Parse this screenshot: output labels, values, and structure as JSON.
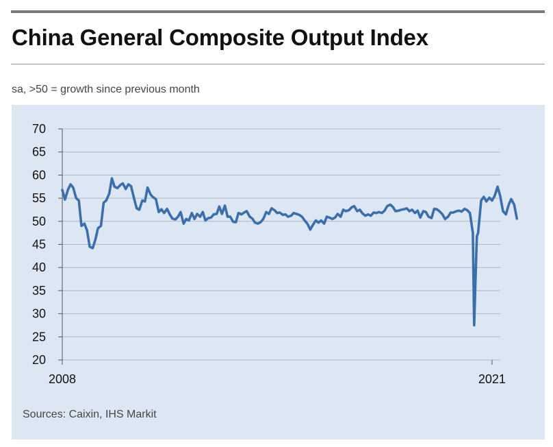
{
  "title": "China General Composite Output Index",
  "subtitle": "sa, >50 = growth since previous month",
  "source": "Sources: Caixin, IHS Markit",
  "colors": {
    "line": "#3a6fab",
    "panel": "#dde7f4",
    "grid": "#aeb6c2",
    "rule": "#7a7a7a"
  },
  "chart_data": {
    "type": "line",
    "title": "China General Composite Output Index",
    "subtitle": "sa, >50 = growth since previous month",
    "xlabel": "",
    "ylabel": "",
    "ylim": [
      20,
      70
    ],
    "yticks": [
      20,
      25,
      30,
      35,
      40,
      45,
      50,
      55,
      60,
      65,
      70
    ],
    "xlim": [
      2008.0,
      2021.25
    ],
    "xtick_labels": [
      {
        "x": 2008.0,
        "label": "2008"
      },
      {
        "x": 2021.0,
        "label": "2021"
      }
    ],
    "grid": "horizontal",
    "series": [
      {
        "points": [
          [
            2008.0,
            56.8
          ],
          [
            2008.08,
            54.7
          ],
          [
            2008.17,
            56.8
          ],
          [
            2008.25,
            58.0
          ],
          [
            2008.33,
            57.3
          ],
          [
            2008.42,
            55.0
          ],
          [
            2008.5,
            54.5
          ],
          [
            2008.58,
            49.0
          ],
          [
            2008.67,
            49.5
          ],
          [
            2008.75,
            48.0
          ],
          [
            2008.83,
            44.5
          ],
          [
            2008.92,
            44.2
          ],
          [
            2009.0,
            46.0
          ],
          [
            2009.08,
            48.5
          ],
          [
            2009.17,
            49.0
          ],
          [
            2009.25,
            54.0
          ],
          [
            2009.33,
            54.5
          ],
          [
            2009.42,
            56.0
          ],
          [
            2009.5,
            59.3
          ],
          [
            2009.58,
            57.5
          ],
          [
            2009.67,
            57.2
          ],
          [
            2009.75,
            57.8
          ],
          [
            2009.83,
            58.2
          ],
          [
            2009.92,
            57.0
          ],
          [
            2010.0,
            58.0
          ],
          [
            2010.08,
            57.6
          ],
          [
            2010.17,
            55.0
          ],
          [
            2010.25,
            52.8
          ],
          [
            2010.33,
            52.5
          ],
          [
            2010.42,
            54.5
          ],
          [
            2010.5,
            54.3
          ],
          [
            2010.58,
            57.3
          ],
          [
            2010.67,
            55.8
          ],
          [
            2010.75,
            55.2
          ],
          [
            2010.83,
            54.8
          ],
          [
            2010.92,
            52.0
          ],
          [
            2011.0,
            52.6
          ],
          [
            2011.08,
            51.8
          ],
          [
            2011.17,
            52.7
          ],
          [
            2011.25,
            51.5
          ],
          [
            2011.33,
            50.6
          ],
          [
            2011.42,
            50.4
          ],
          [
            2011.5,
            51.0
          ],
          [
            2011.58,
            52.0
          ],
          [
            2011.67,
            49.5
          ],
          [
            2011.75,
            50.5
          ],
          [
            2011.83,
            50.2
          ],
          [
            2011.92,
            51.8
          ],
          [
            2012.0,
            50.5
          ],
          [
            2012.08,
            51.6
          ],
          [
            2012.17,
            51.0
          ],
          [
            2012.25,
            52.0
          ],
          [
            2012.33,
            50.2
          ],
          [
            2012.42,
            50.7
          ],
          [
            2012.5,
            50.8
          ],
          [
            2012.58,
            51.5
          ],
          [
            2012.67,
            51.6
          ],
          [
            2012.75,
            53.2
          ],
          [
            2012.83,
            51.6
          ],
          [
            2012.92,
            53.4
          ],
          [
            2013.0,
            51.0
          ],
          [
            2013.08,
            51.0
          ],
          [
            2013.17,
            49.9
          ],
          [
            2013.25,
            49.8
          ],
          [
            2013.33,
            51.8
          ],
          [
            2013.42,
            51.5
          ],
          [
            2013.5,
            51.9
          ],
          [
            2013.58,
            52.2
          ],
          [
            2013.67,
            51.0
          ],
          [
            2013.75,
            50.6
          ],
          [
            2013.83,
            49.7
          ],
          [
            2013.92,
            49.5
          ],
          [
            2014.0,
            49.8
          ],
          [
            2014.08,
            50.5
          ],
          [
            2014.17,
            52.0
          ],
          [
            2014.25,
            51.6
          ],
          [
            2014.33,
            52.8
          ],
          [
            2014.42,
            52.4
          ],
          [
            2014.5,
            51.8
          ],
          [
            2014.58,
            51.9
          ],
          [
            2014.67,
            51.4
          ],
          [
            2014.75,
            51.5
          ],
          [
            2014.83,
            51.0
          ],
          [
            2014.92,
            51.2
          ],
          [
            2015.0,
            51.8
          ],
          [
            2015.08,
            51.6
          ],
          [
            2015.17,
            51.4
          ],
          [
            2015.25,
            51.0
          ],
          [
            2015.33,
            50.2
          ],
          [
            2015.42,
            49.4
          ],
          [
            2015.5,
            48.2
          ],
          [
            2015.58,
            49.2
          ],
          [
            2015.67,
            50.2
          ],
          [
            2015.75,
            49.7
          ],
          [
            2015.83,
            50.2
          ],
          [
            2015.92,
            49.5
          ],
          [
            2016.0,
            51.0
          ],
          [
            2016.08,
            50.8
          ],
          [
            2016.17,
            50.5
          ],
          [
            2016.25,
            50.8
          ],
          [
            2016.33,
            51.6
          ],
          [
            2016.42,
            51.0
          ],
          [
            2016.5,
            52.5
          ],
          [
            2016.58,
            52.2
          ],
          [
            2016.67,
            52.4
          ],
          [
            2016.75,
            53.0
          ],
          [
            2016.83,
            53.3
          ],
          [
            2016.92,
            52.2
          ],
          [
            2017.0,
            52.5
          ],
          [
            2017.08,
            51.7
          ],
          [
            2017.17,
            51.2
          ],
          [
            2017.25,
            51.5
          ],
          [
            2017.33,
            51.2
          ],
          [
            2017.42,
            51.9
          ],
          [
            2017.5,
            51.8
          ],
          [
            2017.58,
            52.0
          ],
          [
            2017.67,
            51.8
          ],
          [
            2017.75,
            52.3
          ],
          [
            2017.83,
            53.3
          ],
          [
            2017.92,
            53.6
          ],
          [
            2018.0,
            53.1
          ],
          [
            2018.08,
            52.2
          ],
          [
            2018.17,
            52.3
          ],
          [
            2018.25,
            52.5
          ],
          [
            2018.33,
            52.6
          ],
          [
            2018.42,
            52.8
          ],
          [
            2018.5,
            52.2
          ],
          [
            2018.58,
            52.5
          ],
          [
            2018.67,
            51.8
          ],
          [
            2018.75,
            52.3
          ],
          [
            2018.83,
            50.8
          ],
          [
            2018.92,
            52.2
          ],
          [
            2019.0,
            52.0
          ],
          [
            2019.08,
            51.0
          ],
          [
            2019.17,
            50.7
          ],
          [
            2019.25,
            52.7
          ],
          [
            2019.33,
            52.6
          ],
          [
            2019.42,
            52.1
          ],
          [
            2019.5,
            51.5
          ],
          [
            2019.58,
            50.5
          ],
          [
            2019.67,
            51.0
          ],
          [
            2019.75,
            51.9
          ],
          [
            2019.83,
            51.9
          ],
          [
            2019.92,
            52.2
          ],
          [
            2020.0,
            52.3
          ],
          [
            2020.08,
            52.1
          ],
          [
            2020.17,
            52.7
          ],
          [
            2020.25,
            52.4
          ],
          [
            2020.33,
            51.8
          ],
          [
            2020.42,
            47.5
          ],
          [
            2020.46,
            27.5
          ],
          [
            2020.54,
            46.7
          ],
          [
            2020.58,
            47.5
          ],
          [
            2020.67,
            54.5
          ],
          [
            2020.75,
            55.3
          ],
          [
            2020.83,
            54.3
          ],
          [
            2020.92,
            55.1
          ],
          [
            2021.0,
            54.5
          ],
          [
            2021.08,
            55.5
          ],
          [
            2021.17,
            57.5
          ],
          [
            2021.25,
            55.4
          ],
          [
            2021.33,
            52.2
          ],
          [
            2021.42,
            51.5
          ],
          [
            2021.5,
            53.5
          ],
          [
            2021.58,
            54.8
          ],
          [
            2021.67,
            53.6
          ],
          [
            2021.75,
            50.6
          ]
        ]
      }
    ]
  }
}
